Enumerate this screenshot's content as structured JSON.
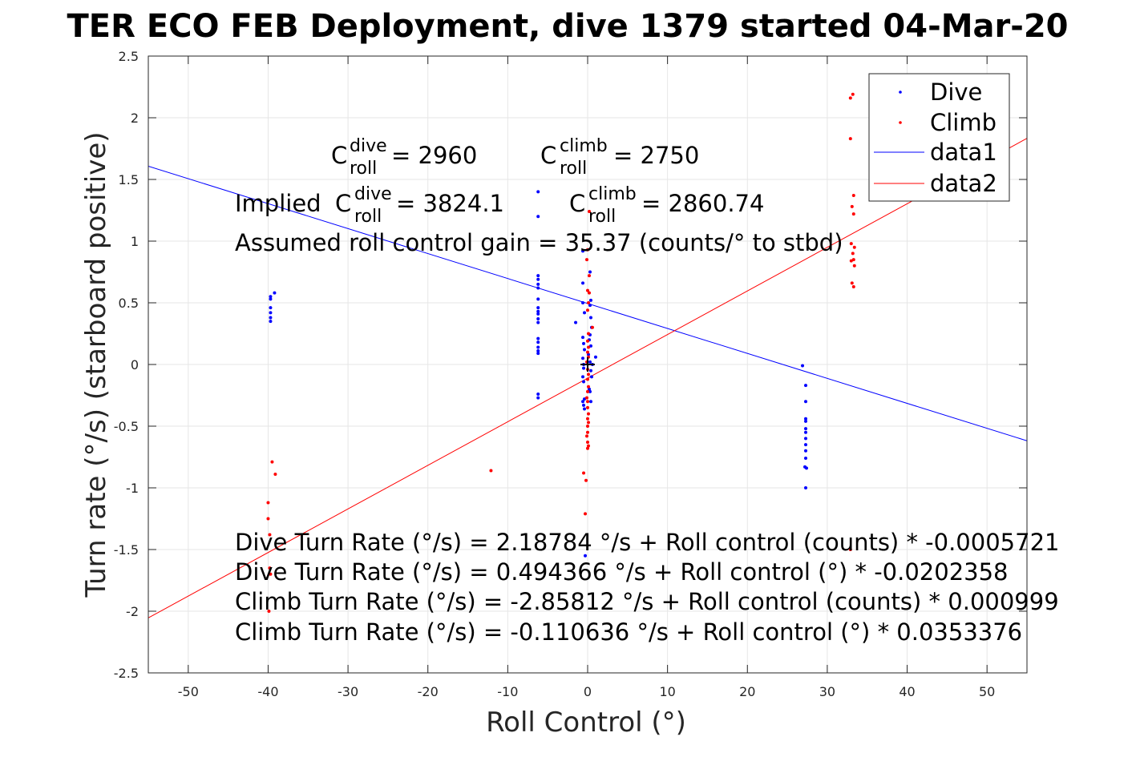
{
  "chart_data": {
    "type": "scatter",
    "title": "TER ECO FEB Deployment, dive 1379 started 04-Mar-20",
    "xlabel": "Roll Control (°)",
    "ylabel": "Turn rate (°/s) (starboard positive)",
    "xlim": [
      -55,
      55
    ],
    "ylim": [
      -2.5,
      2.5
    ],
    "xticks": [
      -50,
      -40,
      -30,
      -20,
      -10,
      0,
      10,
      20,
      30,
      40,
      50
    ],
    "yticks": [
      -2.5,
      -2,
      -1.5,
      -1,
      -0.5,
      0,
      0.5,
      1,
      1.5,
      2,
      2.5
    ],
    "xtick_labels": [
      "-50",
      "-40",
      "-30",
      "-20",
      "-10",
      "0",
      "10",
      "20",
      "30",
      "40",
      "50"
    ],
    "ytick_labels": [
      "-2.5",
      "-2",
      "-1.5",
      "-1",
      "-0.5",
      "0",
      "0.5",
      "1",
      "1.5",
      "2",
      "2.5"
    ],
    "grid": true,
    "legend_position": "top-right",
    "series": [
      {
        "name": "Dive",
        "kind": "points",
        "color": "#0000ff",
        "points": [
          [
            -39.7,
            0.35
          ],
          [
            -39.7,
            0.38
          ],
          [
            -39.7,
            0.42
          ],
          [
            -39.7,
            0.46
          ],
          [
            -39.7,
            0.53
          ],
          [
            -39.7,
            0.55
          ],
          [
            -39.2,
            0.58
          ],
          [
            -6.2,
            1.4
          ],
          [
            -6.2,
            1.2
          ],
          [
            -6.2,
            0.72
          ],
          [
            -6.2,
            0.69
          ],
          [
            -6.2,
            0.65
          ],
          [
            -6.2,
            0.62
          ],
          [
            -6.2,
            0.53
          ],
          [
            -6.2,
            0.46
          ],
          [
            -6.2,
            0.43
          ],
          [
            -6.2,
            0.41
          ],
          [
            -6.2,
            0.37
          ],
          [
            -6.2,
            0.34
          ],
          [
            -6.2,
            0.21
          ],
          [
            -6.2,
            0.18
          ],
          [
            -6.2,
            0.14
          ],
          [
            -6.2,
            0.11
          ],
          [
            -6.2,
            0.09
          ],
          [
            -6.2,
            -0.24
          ],
          [
            -6.2,
            -0.27
          ],
          [
            -1.5,
            0.34
          ],
          [
            -0.6,
            0.92
          ],
          [
            -0.6,
            0.66
          ],
          [
            -0.6,
            0.5
          ],
          [
            -0.4,
            0.42
          ],
          [
            -0.6,
            0.22
          ],
          [
            -0.5,
            0.17
          ],
          [
            -0.4,
            0.12
          ],
          [
            -0.6,
            0.05
          ],
          [
            -0.5,
            0.0
          ],
          [
            -0.5,
            -0.03
          ],
          [
            -0.6,
            -0.1
          ],
          [
            -0.5,
            -0.14
          ],
          [
            -0.4,
            -0.28
          ],
          [
            -0.6,
            -0.3
          ],
          [
            -0.5,
            -0.33
          ],
          [
            -0.4,
            -0.36
          ],
          [
            0.3,
            0.75
          ],
          [
            0.4,
            0.52
          ],
          [
            0.3,
            0.48
          ],
          [
            0.4,
            0.38
          ],
          [
            0.5,
            0.3
          ],
          [
            0.3,
            0.24
          ],
          [
            0.2,
            0.2
          ],
          [
            0.4,
            0.15
          ],
          [
            0.1,
            0.08
          ],
          [
            0.3,
            0.02
          ],
          [
            0.4,
            -0.05
          ],
          [
            0.5,
            -0.1
          ],
          [
            0.2,
            -0.2
          ],
          [
            0.3,
            -0.22
          ],
          [
            0.4,
            -0.3
          ],
          [
            0.6,
            0.0
          ],
          [
            1.0,
            0.06
          ],
          [
            -0.3,
            -1.55
          ],
          [
            26.9,
            -0.01
          ],
          [
            27.3,
            -0.17
          ],
          [
            27.3,
            -0.3
          ],
          [
            27.3,
            -0.44
          ],
          [
            27.3,
            -0.46
          ],
          [
            27.3,
            -0.52
          ],
          [
            27.3,
            -0.55
          ],
          [
            27.3,
            -0.6
          ],
          [
            27.3,
            -0.65
          ],
          [
            27.3,
            -0.7
          ],
          [
            27.3,
            -0.76
          ],
          [
            27.2,
            -0.83
          ],
          [
            27.4,
            -0.84
          ],
          [
            27.3,
            -1.0
          ]
        ]
      },
      {
        "name": "Climb",
        "kind": "points",
        "color": "#ff0000",
        "points": [
          [
            -39.5,
            -0.79
          ],
          [
            -39.1,
            -0.89
          ],
          [
            -40.0,
            -1.12
          ],
          [
            -40.0,
            -1.25
          ],
          [
            -39.8,
            -1.38
          ],
          [
            -39.8,
            -1.65
          ],
          [
            -39.7,
            -1.7
          ],
          [
            -39.9,
            -2.0
          ],
          [
            -12.1,
            -0.86
          ],
          [
            0.2,
            1.24
          ],
          [
            0.0,
            0.93
          ],
          [
            -0.1,
            0.85
          ],
          [
            0.2,
            0.72
          ],
          [
            0.0,
            0.6
          ],
          [
            0.2,
            0.58
          ],
          [
            0.1,
            0.5
          ],
          [
            0.0,
            0.44
          ],
          [
            0.6,
            0.3
          ],
          [
            0.1,
            0.25
          ],
          [
            0.0,
            0.19
          ],
          [
            0.1,
            0.14
          ],
          [
            0.0,
            0.1
          ],
          [
            0.1,
            0.06
          ],
          [
            -0.1,
            0.02
          ],
          [
            0.0,
            -0.04
          ],
          [
            0.1,
            -0.08
          ],
          [
            0.0,
            -0.12
          ],
          [
            0.1,
            -0.18
          ],
          [
            0.0,
            -0.22
          ],
          [
            -0.1,
            -0.27
          ],
          [
            0.0,
            -0.3
          ],
          [
            0.0,
            -0.35
          ],
          [
            0.1,
            -0.4
          ],
          [
            0.0,
            -0.44
          ],
          [
            0.1,
            -0.47
          ],
          [
            0.0,
            -0.5
          ],
          [
            0.0,
            -0.55
          ],
          [
            -0.1,
            -0.58
          ],
          [
            0.0,
            -0.63
          ],
          [
            0.1,
            -0.66
          ],
          [
            0.0,
            -0.68
          ],
          [
            -0.5,
            -0.88
          ],
          [
            -0.2,
            -0.94
          ],
          [
            -0.3,
            -1.21
          ],
          [
            33.2,
            2.19
          ],
          [
            32.9,
            2.16
          ],
          [
            32.9,
            1.83
          ],
          [
            33.3,
            1.37
          ],
          [
            33.1,
            1.28
          ],
          [
            33.3,
            1.22
          ],
          [
            33.0,
            0.98
          ],
          [
            33.4,
            0.95
          ],
          [
            33.2,
            0.9
          ],
          [
            33.3,
            0.85
          ],
          [
            33.0,
            0.84
          ],
          [
            33.4,
            0.8
          ],
          [
            33.1,
            0.66
          ],
          [
            33.3,
            0.63
          ],
          [
            32.9,
            -1.5
          ]
        ]
      },
      {
        "name": "data1",
        "kind": "line",
        "color": "#0000ff",
        "intercept": 0.494366,
        "slope": -0.0202358
      },
      {
        "name": "data2",
        "kind": "line",
        "color": "#ff0000",
        "intercept": -0.110636,
        "slope": 0.0353376
      }
    ],
    "origin_marker": [
      0,
      0
    ],
    "annotations": {
      "c_roll_dive_value": " = 2960",
      "c_roll_climb_value": " = 2750",
      "c_letter": "C",
      "sup_dive": "dive",
      "sup_climb": "climb",
      "sub_roll": "roll",
      "implied_prefix": "Implied ",
      "implied_dive_value": " = 3824.1",
      "implied_climb_value": " = 2860.74",
      "gain_text": "Assumed roll control gain = 35.37 (counts/° to stbd)",
      "fit_lines": [
        "Dive Turn Rate (°/s) = 2.18784 °/s + Roll control (counts) * -0.0005721",
        "Dive Turn Rate (°/s) = 0.494366 °/s + Roll control (°) * -0.0202358",
        "Climb Turn Rate (°/s) = -2.85812 °/s + Roll control (counts) * 0.000999",
        "Climb Turn Rate (°/s) = -0.110636 °/s + Roll control (°) * 0.0353376"
      ]
    }
  }
}
